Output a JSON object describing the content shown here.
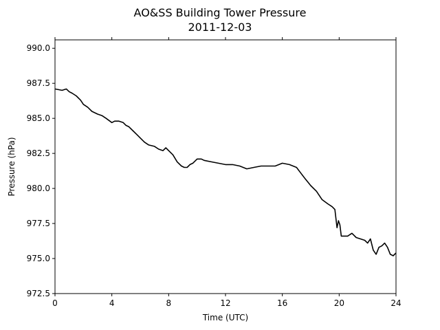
{
  "chart_data": {
    "type": "line",
    "title": "AO&SS Building Tower Pressure",
    "subtitle": "2011-12-03",
    "xlabel": "Time (UTC)",
    "ylabel": "Pressure (hPa)",
    "xlim": [
      0,
      24
    ],
    "ylim": [
      972.5,
      990.6
    ],
    "xticks": [
      0,
      4,
      8,
      12,
      16,
      20,
      24
    ],
    "xtick_labels": [
      "0",
      "4",
      "8",
      "12",
      "16",
      "20",
      "24"
    ],
    "yticks": [
      972.5,
      975.0,
      977.5,
      980.0,
      982.5,
      985.0,
      987.5,
      990.0
    ],
    "ytick_labels": [
      "972.5",
      "975.0",
      "977.5",
      "980.0",
      "982.5",
      "985.0",
      "987.5",
      "990.0"
    ],
    "grid": false,
    "line_color": "#000000",
    "series": [
      {
        "x": [
          0,
          0.5,
          0.8,
          1.0,
          1.2,
          1.5,
          1.8,
          2.0,
          2.3,
          2.6,
          3.0,
          3.3,
          3.6,
          4.0,
          4.2,
          4.5,
          4.8,
          5.0,
          5.2,
          5.5,
          5.8,
          6.0,
          6.3,
          6.6,
          7.0,
          7.3,
          7.6,
          7.8,
          8.0,
          8.3,
          8.6,
          8.9,
          9.1,
          9.3,
          9.5,
          9.7,
          10.0,
          10.3,
          10.5,
          11.0,
          11.5,
          12.0,
          12.5,
          13.0,
          13.5,
          14.0,
          14.5,
          15.0,
          15.5,
          16.0,
          16.5,
          17.0,
          17.3,
          17.6,
          18.0,
          18.4,
          18.8,
          19.2,
          19.5,
          19.7,
          19.85,
          19.95,
          20.05,
          20.15,
          20.3,
          20.6,
          20.9,
          21.2,
          21.5,
          21.8,
          22.0,
          22.2,
          22.4,
          22.6,
          22.8,
          23.0,
          23.2,
          23.4,
          23.6,
          23.8,
          24.0
        ],
        "y": [
          987.1,
          987.0,
          987.1,
          986.9,
          986.8,
          986.6,
          986.3,
          986.0,
          985.8,
          985.5,
          985.3,
          985.2,
          985.0,
          984.7,
          984.8,
          984.8,
          984.7,
          984.5,
          984.4,
          984.1,
          983.8,
          983.6,
          983.3,
          983.1,
          983.0,
          982.8,
          982.7,
          982.9,
          982.7,
          982.4,
          981.9,
          981.6,
          981.5,
          981.5,
          981.7,
          981.8,
          982.1,
          982.1,
          982.0,
          981.9,
          981.8,
          981.7,
          981.7,
          981.6,
          981.4,
          981.5,
          981.6,
          981.6,
          981.6,
          981.8,
          981.7,
          981.5,
          981.1,
          980.7,
          980.2,
          979.8,
          979.2,
          978.9,
          978.7,
          978.5,
          977.2,
          977.7,
          977.4,
          976.6,
          976.6,
          976.6,
          976.8,
          976.5,
          976.4,
          976.3,
          976.1,
          976.4,
          975.6,
          975.3,
          975.8,
          975.9,
          976.1,
          975.8,
          975.3,
          975.2,
          975.4
        ]
      }
    ]
  }
}
